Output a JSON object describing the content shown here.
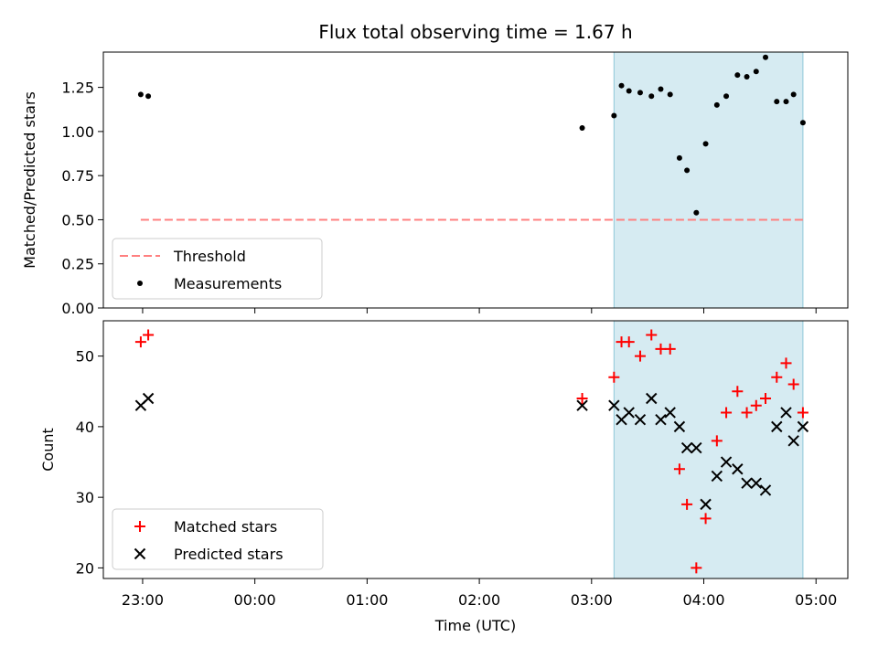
{
  "chart_data": [
    {
      "panel": "top",
      "type": "scatter",
      "title": "Flux total observing time = 1.67 h",
      "xlabel": "",
      "ylabel": "Matched/Predicted stars",
      "ylim": [
        0.0,
        1.45
      ],
      "yticks": [
        "0.00",
        "0.25",
        "0.50",
        "0.75",
        "1.00",
        "1.25"
      ],
      "highlight_span": {
        "start": "03:12",
        "end": "04:53",
        "color": "#add8e6"
      },
      "legend": {
        "placement": "lower-left",
        "entries": [
          "Threshold",
          "Measurements"
        ]
      },
      "series": [
        {
          "name": "Threshold",
          "kind": "dashed-line",
          "color": "#ff8080",
          "x": [
            "22:59",
            "04:53"
          ],
          "y": [
            0.5,
            0.5
          ]
        },
        {
          "name": "Measurements",
          "kind": "dots",
          "color": "#000000",
          "x": [
            "22:59",
            "23:03",
            "02:55",
            "03:12",
            "03:16",
            "03:20",
            "03:26",
            "03:32",
            "03:37",
            "03:42",
            "03:47",
            "03:51",
            "03:56",
            "04:01",
            "04:07",
            "04:12",
            "04:18",
            "04:23",
            "04:28",
            "04:33",
            "04:39",
            "04:44",
            "04:48",
            "04:53"
          ],
          "y": [
            1.21,
            1.2,
            1.02,
            1.09,
            1.26,
            1.23,
            1.22,
            1.2,
            1.24,
            1.21,
            0.85,
            0.78,
            0.54,
            0.93,
            1.15,
            1.2,
            1.32,
            1.31,
            1.34,
            1.42,
            1.17,
            1.17,
            1.21,
            1.05
          ]
        }
      ]
    },
    {
      "panel": "bottom",
      "type": "scatter",
      "title": "",
      "xlabel": "Time (UTC)",
      "ylabel": "Count",
      "ylim": [
        18.5,
        55
      ],
      "yticks": [
        "20",
        "30",
        "40",
        "50"
      ],
      "xticks": [
        "23:00",
        "00:00",
        "01:00",
        "02:00",
        "03:00",
        "04:00",
        "05:00"
      ],
      "highlight_span": {
        "start": "03:12",
        "end": "04:53",
        "color": "#add8e6"
      },
      "legend": {
        "placement": "lower-left",
        "entries": [
          "Matched stars",
          "Predicted stars"
        ]
      },
      "series": [
        {
          "name": "Matched stars",
          "kind": "plus",
          "color": "#ff0000",
          "x": [
            "22:59",
            "23:03",
            "02:55",
            "03:12",
            "03:16",
            "03:20",
            "03:26",
            "03:32",
            "03:37",
            "03:42",
            "03:47",
            "03:51",
            "03:56",
            "04:01",
            "04:07",
            "04:12",
            "04:18",
            "04:23",
            "04:28",
            "04:33",
            "04:39",
            "04:44",
            "04:48",
            "04:53"
          ],
          "y": [
            52,
            53,
            44,
            47,
            52,
            52,
            50,
            53,
            51,
            51,
            34,
            29,
            20,
            27,
            38,
            42,
            45,
            42,
            43,
            44,
            47,
            49,
            46,
            42
          ]
        },
        {
          "name": "Predicted stars",
          "kind": "x",
          "color": "#000000",
          "x": [
            "22:59",
            "23:03",
            "02:55",
            "03:12",
            "03:16",
            "03:20",
            "03:26",
            "03:32",
            "03:37",
            "03:42",
            "03:47",
            "03:51",
            "03:56",
            "04:01",
            "04:07",
            "04:12",
            "04:18",
            "04:23",
            "04:28",
            "04:33",
            "04:39",
            "04:44",
            "04:48",
            "04:53"
          ],
          "y": [
            43,
            44,
            43,
            43,
            41,
            42,
            41,
            44,
            41,
            42,
            40,
            37,
            37,
            29,
            33,
            35,
            34,
            32,
            32,
            31,
            40,
            42,
            38,
            40
          ]
        }
      ]
    }
  ]
}
